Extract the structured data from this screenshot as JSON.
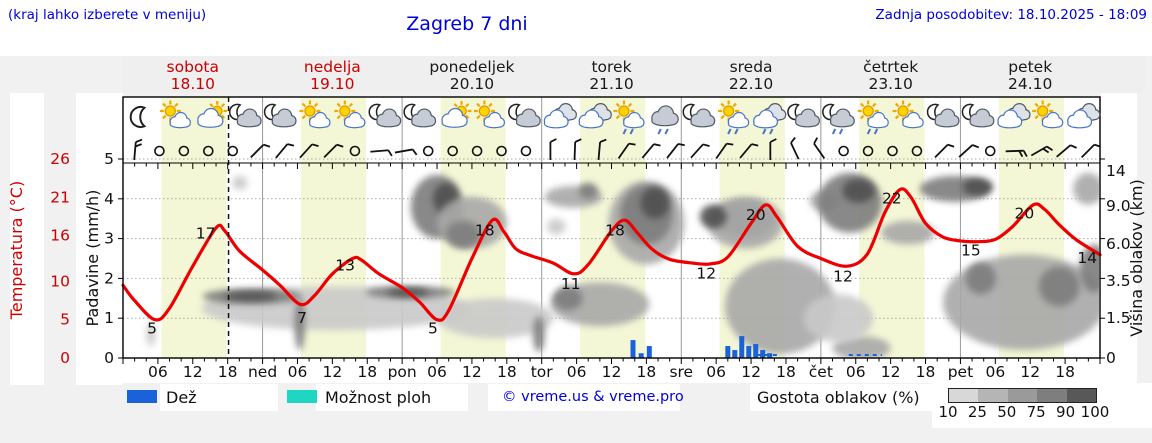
{
  "header": {
    "hint": "(kraj lahko izberete v meniju)",
    "title": "Zagreb 7 dni",
    "updated": "Zadnja posodobitev: 18.10.2025 - 18:09"
  },
  "legend": {
    "rain_label": "Dež",
    "showers_label": "Možnost ploh",
    "copyright": "© vreme.us & vreme.pro",
    "density_label": "Gostota oblakov (%)",
    "density_ticks": [
      "10",
      "25",
      "50",
      "75",
      "90",
      "100"
    ],
    "density_colors": [
      "#d8d8d8",
      "#b5b5b5",
      "#9a9a9a",
      "#7e7e7e",
      "#585858"
    ]
  },
  "colors": {
    "accent_blue": "#0000dd",
    "red_label": "#cc0000",
    "curve": "#ee0000",
    "rain_bar": "#1a62d9",
    "showers": "#1fd6c2",
    "day_band": "#f4f7d6",
    "page_bg": "#f1f1f1",
    "header_band": "#efefef",
    "grid_day_line": "#999999",
    "grid_dotted": "#aaaaaa",
    "cloud_shades": [
      "#e3e3e3",
      "#c9c9c9",
      "#a8a8a8",
      "#7d7d7d",
      "#4f4f4f"
    ]
  },
  "chart_data": {
    "type": "meteogram-line",
    "title": "Zagreb 7 dni",
    "hours_span": 168,
    "now_hour": 18.15,
    "day_band_hours": [
      6.6,
      17.8
    ],
    "days": [
      {
        "name": "sobota",
        "date": "18.10",
        "red": true
      },
      {
        "name": "nedelja",
        "date": "19.10",
        "red": true
      },
      {
        "name": "ponedeljek",
        "date": "20.10",
        "red": false
      },
      {
        "name": "torek",
        "date": "21.10",
        "red": false
      },
      {
        "name": "sreda",
        "date": "22.10",
        "red": false
      },
      {
        "name": "četrtek",
        "date": "23.10",
        "red": false
      },
      {
        "name": "petek",
        "date": "24.10",
        "red": false
      }
    ],
    "axes": {
      "temp": {
        "label": "Temperatura (°C)",
        "ticks": [
          26,
          21,
          16,
          10,
          5,
          0
        ],
        "range": [
          0,
          26
        ]
      },
      "precip": {
        "label": "Padavine (mm/h)",
        "ticks": [
          5,
          4,
          3,
          2,
          1,
          0
        ],
        "range": [
          0,
          5
        ]
      },
      "cloud": {
        "label": "Višina oblakov (km)",
        "ticks": [
          "14",
          "9.0",
          "6.0",
          "3.5",
          "1.5",
          "0"
        ]
      }
    },
    "x_ticks": [
      [
        6,
        "06"
      ],
      [
        12,
        "12"
      ],
      [
        18,
        "18"
      ],
      [
        24,
        "ned"
      ],
      [
        30,
        "06"
      ],
      [
        36,
        "12"
      ],
      [
        42,
        "18"
      ],
      [
        48,
        "pon"
      ],
      [
        54,
        "06"
      ],
      [
        60,
        "12"
      ],
      [
        66,
        "18"
      ],
      [
        72,
        "tor"
      ],
      [
        78,
        "06"
      ],
      [
        84,
        "12"
      ],
      [
        90,
        "18"
      ],
      [
        96,
        "sre"
      ],
      [
        102,
        "06"
      ],
      [
        108,
        "12"
      ],
      [
        114,
        "18"
      ],
      [
        120,
        "čet"
      ],
      [
        126,
        "06"
      ],
      [
        132,
        "12"
      ],
      [
        138,
        "18"
      ],
      [
        144,
        "pet"
      ],
      [
        150,
        "06"
      ],
      [
        156,
        "12"
      ],
      [
        162,
        "18"
      ]
    ],
    "temperature_degC": [
      [
        0,
        9.5
      ],
      [
        2,
        7.5
      ],
      [
        5.5,
        5
      ],
      [
        8,
        6.5
      ],
      [
        12,
        12
      ],
      [
        16,
        17
      ],
      [
        17.5,
        16.6
      ],
      [
        20,
        14
      ],
      [
        24,
        11.5
      ],
      [
        27,
        9.5
      ],
      [
        30.5,
        7
      ],
      [
        33,
        8.2
      ],
      [
        36,
        11
      ],
      [
        39.5,
        13
      ],
      [
        41,
        12.8
      ],
      [
        44,
        11
      ],
      [
        48,
        9.2
      ],
      [
        51,
        7.3
      ],
      [
        54,
        5
      ],
      [
        56,
        6.2
      ],
      [
        60,
        13
      ],
      [
        63.5,
        18
      ],
      [
        65.5,
        16.5
      ],
      [
        67.5,
        14.3
      ],
      [
        70,
        13.4
      ],
      [
        74,
        12.4
      ],
      [
        77.5,
        11
      ],
      [
        80,
        12.2
      ],
      [
        84,
        16.6
      ],
      [
        86.3,
        18
      ],
      [
        88.5,
        16.3
      ],
      [
        91,
        14.2
      ],
      [
        94,
        12.9
      ],
      [
        98,
        12.4
      ],
      [
        101,
        12.3
      ],
      [
        104,
        13.2
      ],
      [
        108,
        17.6
      ],
      [
        110.5,
        20
      ],
      [
        112.5,
        18.4
      ],
      [
        116,
        14.6
      ],
      [
        120,
        13
      ],
      [
        124.5,
        12
      ],
      [
        128,
        13.6
      ],
      [
        131,
        19
      ],
      [
        133.6,
        22
      ],
      [
        135.5,
        21
      ],
      [
        138,
        17.6
      ],
      [
        141,
        15.8
      ],
      [
        144,
        15.3
      ],
      [
        147,
        15.2
      ],
      [
        150,
        15.5
      ],
      [
        153,
        17.2
      ],
      [
        156.5,
        20
      ],
      [
        158.5,
        19.4
      ],
      [
        161,
        17.4
      ],
      [
        164,
        15.4
      ],
      [
        168,
        13.5
      ]
    ],
    "temp_point_labels": [
      [
        "5",
        5.0,
        3.2
      ],
      [
        "17",
        14.2,
        15.6
      ],
      [
        "7",
        30.8,
        4.6
      ],
      [
        "13",
        38.2,
        11.4
      ],
      [
        "5",
        53.3,
        3.2
      ],
      [
        "18",
        62.2,
        16.0
      ],
      [
        "11",
        77.0,
        9.0
      ],
      [
        "18",
        84.6,
        16.0
      ],
      [
        "12",
        100.3,
        10.4
      ],
      [
        "20",
        108.8,
        18.0
      ],
      [
        "12",
        123.8,
        10.0
      ],
      [
        "22",
        132.2,
        20.2
      ],
      [
        "15",
        145.8,
        13.4
      ],
      [
        "20",
        155.0,
        18.2
      ],
      [
        "14",
        165.8,
        12.4
      ]
    ],
    "rain_bars_mmh": [
      [
        87.7,
        0.45
      ],
      [
        89.1,
        0.12
      ],
      [
        90.5,
        0.3
      ],
      [
        104,
        0.3
      ],
      [
        105.2,
        0.2
      ],
      [
        106.4,
        0.55
      ],
      [
        107.6,
        0.3
      ],
      [
        108.8,
        0.35
      ],
      [
        110,
        0.2
      ],
      [
        111.2,
        0.12
      ]
    ],
    "shower_dash_hours": [
      [
        109,
        112.5
      ],
      [
        124.8,
        130.5
      ]
    ],
    "weather_icons": [
      "moon",
      "sun-cloud",
      "cloud-sun",
      "moon-cloud",
      "moon-cloud",
      "sun-cloud",
      "sun-cloud",
      "moon-cloud",
      "moon-cloud",
      "cloud-sun",
      "sun-cloud",
      "moon-cloud",
      "clouds",
      "clouds",
      "sun-cloud-rain",
      "cloud-rain",
      "moon-cloud",
      "sun-cloud-rain",
      "clouds-rain",
      "moon-cloud",
      "moon-cloud-rain",
      "sun-cloud-rain",
      "sun-cloud",
      "moon-cloud",
      "moon-cloud",
      "clouds",
      "sun-cloud",
      "clouds"
    ],
    "wind": [
      "b:5:2",
      "c",
      "c",
      "c",
      "c",
      "b:45:1",
      "b:40:1",
      "b:42:1",
      "b:45:1",
      "c",
      "b:85:1",
      "b:80:1",
      "c",
      "c",
      "c",
      "c",
      "c",
      "b:0:1",
      "b:2:1",
      "b:5:1",
      "b:35:1",
      "b:40:1",
      "b:38:1",
      "b:42:1",
      "b:35:1",
      "b:40:1",
      "b:0:1",
      "b:-25:1",
      "b:-35:1",
      "c",
      "c",
      "c",
      "c",
      "b:45:1",
      "b:48:1",
      "c",
      "b:88:2",
      "b:60:2",
      "b:50:1",
      "b:45:1"
    ],
    "cloud_blobs": [
      [
        36.5,
        0.25,
        23,
        0.11,
        1
      ],
      [
        22.2,
        0.31,
        8.5,
        0.04,
        3
      ],
      [
        22.0,
        0.31,
        4.5,
        0.022,
        4
      ],
      [
        49.4,
        0.33,
        7.7,
        0.032,
        3
      ],
      [
        49.0,
        0.33,
        3.5,
        0.02,
        4
      ],
      [
        20.1,
        0.88,
        1.3,
        0.035,
        1
      ],
      [
        30.4,
        0.17,
        0.9,
        0.13,
        3
      ],
      [
        54.0,
        0.76,
        4.5,
        0.16,
        3
      ],
      [
        55.5,
        0.8,
        2.2,
        0.08,
        4
      ],
      [
        60.0,
        0.68,
        6.0,
        0.13,
        2
      ],
      [
        58.5,
        0.62,
        3.0,
        0.07,
        3
      ],
      [
        77.5,
        0.81,
        5.0,
        0.055,
        2
      ],
      [
        80.0,
        0.84,
        1.6,
        0.04,
        3
      ],
      [
        64.0,
        0.2,
        10,
        0.1,
        1
      ],
      [
        90.0,
        0.68,
        6.5,
        0.21,
        2
      ],
      [
        90.0,
        0.72,
        4.5,
        0.15,
        3
      ],
      [
        91.5,
        0.78,
        2.5,
        0.08,
        4
      ],
      [
        82.0,
        0.27,
        8.5,
        0.11,
        2
      ],
      [
        76.5,
        0.3,
        2.5,
        0.06,
        3
      ],
      [
        71.5,
        0.12,
        1.0,
        0.09,
        3
      ],
      [
        107,
        0.7,
        5.0,
        0.09,
        3
      ],
      [
        107,
        0.68,
        6.5,
        0.13,
        2
      ],
      [
        101.5,
        0.71,
        2.3,
        0.06,
        4
      ],
      [
        113,
        0.26,
        9.5,
        0.24,
        2
      ],
      [
        120.5,
        0.79,
        2.4,
        0.05,
        2
      ],
      [
        125,
        0.78,
        5.5,
        0.15,
        3
      ],
      [
        126.5,
        0.84,
        2.8,
        0.06,
        4
      ],
      [
        135,
        0.63,
        4.6,
        0.06,
        2
      ],
      [
        127,
        0.05,
        5.0,
        0.06,
        2
      ],
      [
        143,
        0.85,
        6.0,
        0.065,
        3
      ],
      [
        147,
        0.86,
        2.6,
        0.045,
        4
      ],
      [
        155,
        0.28,
        14,
        0.24,
        2
      ],
      [
        161,
        0.36,
        3.5,
        0.1,
        3
      ],
      [
        167,
        0.45,
        2.5,
        0.12,
        3
      ],
      [
        147.5,
        0.4,
        2.6,
        0.08,
        3
      ],
      [
        166,
        0.85,
        2.6,
        0.08,
        2
      ],
      [
        4.8,
        0.12,
        0.8,
        0.06,
        1
      ],
      [
        74.5,
        0.66,
        1.6,
        0.04,
        1
      ],
      [
        123,
        0.2,
        6.0,
        0.12,
        1
      ]
    ]
  }
}
